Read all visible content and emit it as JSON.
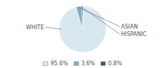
{
  "chart_data": {
    "type": "pie",
    "categories": [
      "WHITE",
      "ASIAN",
      "HISPANIC"
    ],
    "values": [
      95.6,
      3.6,
      0.8
    ],
    "value_labels": [
      "95.6%",
      "3.6%",
      "0.8%"
    ],
    "colors": [
      "#d9e8f0",
      "#7aaec4",
      "#2e5f7a"
    ],
    "legend": "bottom"
  }
}
